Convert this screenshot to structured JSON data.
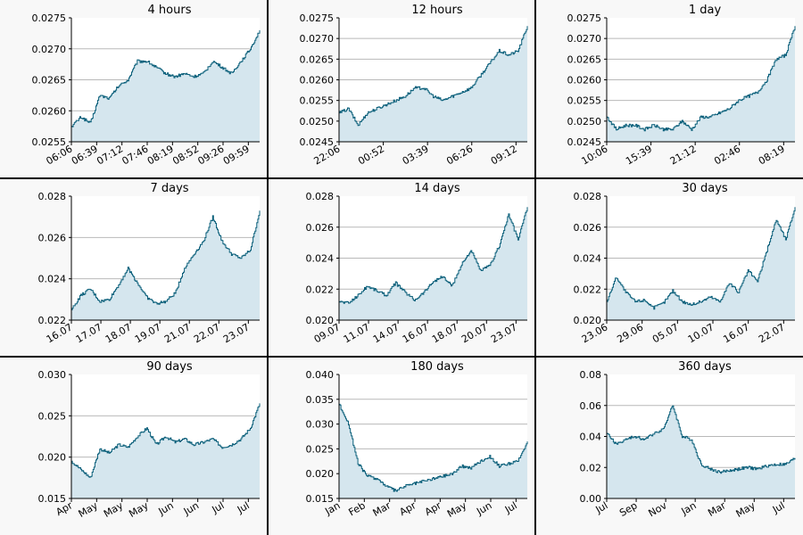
{
  "chart_data": [
    {
      "type": "area",
      "title": "4 hours",
      "x_ticks": [
        "06:06",
        "06:39",
        "07:12",
        "07:46",
        "08:19",
        "08:52",
        "09:26",
        "09:59"
      ],
      "y_ticks": [
        "0.0255",
        "0.0260",
        "0.0265",
        "0.0270",
        "0.0275"
      ],
      "ylim": [
        0.0255,
        0.0275
      ],
      "grid": true,
      "color": "#0a5f7a",
      "fill": "#d5e6ee",
      "series": [
        {
          "x": [
            0,
            0.05,
            0.1,
            0.15,
            0.2,
            0.25,
            0.3,
            0.35,
            0.4,
            0.45,
            0.5,
            0.55,
            0.6,
            0.65,
            0.7,
            0.75,
            0.8,
            0.85,
            0.9,
            0.95,
            1
          ],
          "values": [
            0.02575,
            0.0259,
            0.0258,
            0.02625,
            0.0262,
            0.0264,
            0.0265,
            0.0268,
            0.0268,
            0.0267,
            0.0266,
            0.02655,
            0.0266,
            0.02655,
            0.0266,
            0.0268,
            0.0267,
            0.0266,
            0.0268,
            0.027,
            0.0273
          ]
        }
      ]
    },
    {
      "type": "area",
      "title": "12 hours",
      "x_ticks": [
        "22:06",
        "00:52",
        "03:39",
        "06:26",
        "09:12"
      ],
      "y_ticks": [
        "0.0245",
        "0.0250",
        "0.0255",
        "0.0260",
        "0.0265",
        "0.0270",
        "0.0275"
      ],
      "ylim": [
        0.0245,
        0.0275
      ],
      "grid": true,
      "color": "#0a5f7a",
      "fill": "#d5e6ee",
      "series": [
        {
          "x": [
            0,
            0.05,
            0.1,
            0.15,
            0.2,
            0.25,
            0.3,
            0.35,
            0.4,
            0.45,
            0.5,
            0.55,
            0.6,
            0.65,
            0.7,
            0.75,
            0.8,
            0.85,
            0.9,
            0.95,
            1
          ],
          "values": [
            0.0252,
            0.0253,
            0.0249,
            0.0252,
            0.0253,
            0.0254,
            0.0255,
            0.0256,
            0.0258,
            0.0258,
            0.0256,
            0.0255,
            0.0256,
            0.0257,
            0.0258,
            0.0261,
            0.0264,
            0.0267,
            0.0266,
            0.0267,
            0.0273
          ]
        }
      ]
    },
    {
      "type": "area",
      "title": "1 day",
      "x_ticks": [
        "10:06",
        "15:39",
        "21:12",
        "02:46",
        "08:19"
      ],
      "y_ticks": [
        "0.0245",
        "0.0250",
        "0.0255",
        "0.0260",
        "0.0265",
        "0.0270",
        "0.0275"
      ],
      "ylim": [
        0.0245,
        0.0275
      ],
      "grid": true,
      "color": "#0a5f7a",
      "fill": "#d5e6ee",
      "series": [
        {
          "x": [
            0,
            0.05,
            0.1,
            0.15,
            0.2,
            0.25,
            0.3,
            0.35,
            0.4,
            0.45,
            0.5,
            0.55,
            0.6,
            0.65,
            0.7,
            0.75,
            0.8,
            0.85,
            0.9,
            0.95,
            1
          ],
          "values": [
            0.0251,
            0.0248,
            0.0249,
            0.0249,
            0.0248,
            0.0249,
            0.0248,
            0.0248,
            0.025,
            0.0248,
            0.0251,
            0.0251,
            0.0252,
            0.0253,
            0.0255,
            0.0256,
            0.0257,
            0.026,
            0.0265,
            0.0266,
            0.0273
          ]
        }
      ]
    },
    {
      "type": "area",
      "title": "7 days",
      "x_ticks": [
        "16.07",
        "17.07",
        "18.07",
        "19.07",
        "21.07",
        "22.07",
        "23.07"
      ],
      "y_ticks": [
        "0.022",
        "0.024",
        "0.026",
        "0.028"
      ],
      "ylim": [
        0.022,
        0.028
      ],
      "grid": true,
      "color": "#0a5f7a",
      "fill": "#d5e6ee",
      "series": [
        {
          "x": [
            0,
            0.05,
            0.1,
            0.15,
            0.2,
            0.25,
            0.3,
            0.35,
            0.4,
            0.45,
            0.5,
            0.55,
            0.6,
            0.65,
            0.7,
            0.75,
            0.8,
            0.85,
            0.9,
            0.95,
            1
          ],
          "values": [
            0.0225,
            0.0232,
            0.0235,
            0.0229,
            0.023,
            0.0237,
            0.0245,
            0.0238,
            0.0231,
            0.0228,
            0.0229,
            0.0233,
            0.0245,
            0.0252,
            0.0258,
            0.027,
            0.0258,
            0.0252,
            0.025,
            0.0254,
            0.0273
          ]
        }
      ]
    },
    {
      "type": "area",
      "title": "14 days",
      "x_ticks": [
        "09.07",
        "11.07",
        "14.07",
        "16.07",
        "18.07",
        "20.07",
        "23.07"
      ],
      "y_ticks": [
        "0.020",
        "0.022",
        "0.024",
        "0.026",
        "0.028"
      ],
      "ylim": [
        0.02,
        0.028
      ],
      "grid": true,
      "color": "#0a5f7a",
      "fill": "#d5e6ee",
      "series": [
        {
          "x": [
            0,
            0.05,
            0.1,
            0.15,
            0.2,
            0.25,
            0.3,
            0.35,
            0.4,
            0.45,
            0.5,
            0.55,
            0.6,
            0.65,
            0.7,
            0.75,
            0.8,
            0.85,
            0.9,
            0.95,
            1
          ],
          "values": [
            0.0212,
            0.0211,
            0.0216,
            0.0222,
            0.0219,
            0.0216,
            0.0224,
            0.0218,
            0.0213,
            0.0218,
            0.0225,
            0.0228,
            0.0222,
            0.0236,
            0.0245,
            0.0232,
            0.0235,
            0.0248,
            0.0268,
            0.0252,
            0.0273
          ]
        }
      ]
    },
    {
      "type": "area",
      "title": "30 days",
      "x_ticks": [
        "23.06",
        "29.06",
        "05.07",
        "10.07",
        "16.07",
        "22.07"
      ],
      "y_ticks": [
        "0.020",
        "0.022",
        "0.024",
        "0.026",
        "0.028"
      ],
      "ylim": [
        0.02,
        0.028
      ],
      "grid": true,
      "color": "#0a5f7a",
      "fill": "#d5e6ee",
      "series": [
        {
          "x": [
            0,
            0.05,
            0.1,
            0.15,
            0.2,
            0.25,
            0.3,
            0.35,
            0.4,
            0.45,
            0.5,
            0.55,
            0.6,
            0.65,
            0.7,
            0.75,
            0.8,
            0.85,
            0.9,
            0.95,
            1
          ],
          "values": [
            0.0212,
            0.0228,
            0.0218,
            0.0212,
            0.0213,
            0.0208,
            0.0211,
            0.0219,
            0.0212,
            0.021,
            0.0212,
            0.0215,
            0.0212,
            0.0224,
            0.0218,
            0.0232,
            0.0225,
            0.0245,
            0.0265,
            0.0252,
            0.0273
          ]
        }
      ]
    },
    {
      "type": "area",
      "title": "90 days",
      "x_ticks": [
        "Apr",
        "May",
        "May",
        "May",
        "Jun",
        "Jun",
        "Jul",
        "Jul"
      ],
      "y_ticks": [
        "0.015",
        "0.020",
        "0.025",
        "0.030"
      ],
      "ylim": [
        0.015,
        0.03
      ],
      "grid": true,
      "color": "#0a5f7a",
      "fill": "#d5e6ee",
      "series": [
        {
          "x": [
            0,
            0.05,
            0.1,
            0.15,
            0.2,
            0.25,
            0.3,
            0.35,
            0.4,
            0.45,
            0.5,
            0.55,
            0.6,
            0.65,
            0.7,
            0.75,
            0.8,
            0.85,
            0.9,
            0.95,
            1
          ],
          "values": [
            0.0195,
            0.0185,
            0.0175,
            0.021,
            0.0205,
            0.0215,
            0.0212,
            0.0225,
            0.0235,
            0.0215,
            0.0225,
            0.0218,
            0.0222,
            0.0215,
            0.0218,
            0.0222,
            0.0212,
            0.0215,
            0.0222,
            0.0235,
            0.0265
          ]
        }
      ]
    },
    {
      "type": "area",
      "title": "180 days",
      "x_ticks": [
        "Jan",
        "Feb",
        "Mar",
        "Apr",
        "Apr",
        "May",
        "Jun",
        "Jul"
      ],
      "y_ticks": [
        "0.015",
        "0.020",
        "0.025",
        "0.030",
        "0.035",
        "0.040"
      ],
      "ylim": [
        0.015,
        0.04
      ],
      "grid": true,
      "color": "#0a5f7a",
      "fill": "#d5e6ee",
      "series": [
        {
          "x": [
            0,
            0.05,
            0.1,
            0.15,
            0.2,
            0.25,
            0.3,
            0.35,
            0.4,
            0.45,
            0.5,
            0.55,
            0.6,
            0.65,
            0.7,
            0.75,
            0.8,
            0.85,
            0.9,
            0.95,
            1
          ],
          "values": [
            0.034,
            0.03,
            0.022,
            0.0195,
            0.019,
            0.0175,
            0.0165,
            0.0175,
            0.018,
            0.0185,
            0.019,
            0.0195,
            0.02,
            0.0215,
            0.0212,
            0.0225,
            0.0235,
            0.0215,
            0.022,
            0.0225,
            0.0265
          ]
        }
      ]
    },
    {
      "type": "area",
      "title": "360 days",
      "x_ticks": [
        "Jul",
        "Sep",
        "Nov",
        "Jan",
        "Mar",
        "May",
        "Jul"
      ],
      "y_ticks": [
        "0.00",
        "0.02",
        "0.04",
        "0.06",
        "0.08"
      ],
      "ylim": [
        0,
        0.08
      ],
      "grid": true,
      "color": "#0a5f7a",
      "fill": "#d5e6ee",
      "series": [
        {
          "x": [
            0,
            0.05,
            0.1,
            0.15,
            0.2,
            0.25,
            0.3,
            0.35,
            0.4,
            0.45,
            0.5,
            0.55,
            0.6,
            0.65,
            0.7,
            0.75,
            0.8,
            0.85,
            0.9,
            0.95,
            1
          ],
          "values": [
            0.042,
            0.035,
            0.038,
            0.04,
            0.038,
            0.042,
            0.045,
            0.06,
            0.04,
            0.038,
            0.022,
            0.019,
            0.017,
            0.018,
            0.019,
            0.02,
            0.019,
            0.021,
            0.022,
            0.022,
            0.026
          ]
        }
      ]
    }
  ]
}
